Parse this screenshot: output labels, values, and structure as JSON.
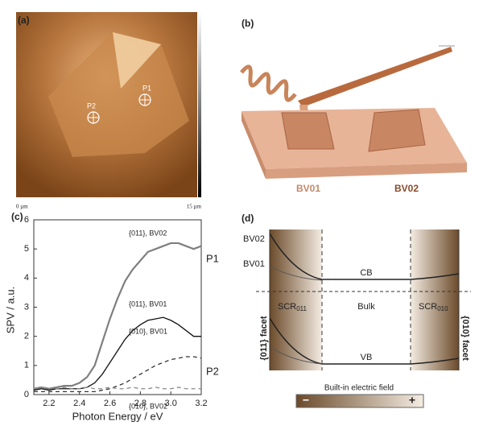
{
  "panels": {
    "a": {
      "label": "(a)",
      "point1": "P1",
      "point2": "P2",
      "scale_start": "0 µm",
      "scale_end": "15 µm"
    },
    "b": {
      "label": "(b)",
      "crystal1": "BV01",
      "crystal2": "BV02"
    },
    "d": {
      "label": "(d)",
      "curve_top": "BV02",
      "curve_bottom": "BV01",
      "cb": "CB",
      "bulk": "Bulk",
      "vb": "VB",
      "scr_left": {
        "text": "SCR",
        "sub": "011"
      },
      "scr_right": {
        "text": "SCR",
        "sub": "010"
      },
      "facet_left": "{011} facet",
      "facet_right": "{010} facet",
      "field": "Built-in electric field",
      "minus": "−",
      "plus": "+"
    }
  },
  "chart_data": {
    "type": "line",
    "label": "(c)",
    "xlabel": "Photon Energy / eV",
    "ylabel": "SPV / a.u.",
    "x": [
      2.1,
      2.15,
      2.2,
      2.25,
      2.3,
      2.35,
      2.4,
      2.45,
      2.5,
      2.55,
      2.6,
      2.65,
      2.7,
      2.75,
      2.8,
      2.85,
      2.9,
      2.95,
      3.0,
      3.05,
      3.1,
      3.15,
      3.2
    ],
    "series": [
      {
        "name": "{011}, BV02",
        "color": "#7f7f7f",
        "style": "solid",
        "values": [
          0.2,
          0.25,
          0.2,
          0.25,
          0.3,
          0.3,
          0.4,
          0.6,
          1.0,
          1.8,
          2.6,
          3.3,
          3.9,
          4.3,
          4.6,
          4.9,
          5.0,
          5.1,
          5.2,
          5.2,
          5.1,
          5.0,
          5.1
        ]
      },
      {
        "name": "{011}, BV01",
        "color": "#111111",
        "style": "solid",
        "values": [
          0.15,
          0.2,
          0.15,
          0.2,
          0.2,
          0.2,
          0.2,
          0.25,
          0.4,
          0.7,
          1.1,
          1.5,
          1.9,
          2.2,
          2.4,
          2.55,
          2.6,
          2.65,
          2.55,
          2.4,
          2.2,
          2.0,
          2.0
        ]
      },
      {
        "name": "{010}, BV01",
        "color": "#333333",
        "style": "dashed",
        "values": [
          0.1,
          0.1,
          0.1,
          0.1,
          0.1,
          0.1,
          0.1,
          0.1,
          0.1,
          0.15,
          0.2,
          0.3,
          0.4,
          0.55,
          0.7,
          0.85,
          1.0,
          1.1,
          1.2,
          1.25,
          1.3,
          1.3,
          1.25
        ]
      },
      {
        "name": "{010}, BV02",
        "color": "#8a8a8a",
        "style": "dashed",
        "values": [
          0.2,
          0.25,
          0.2,
          0.2,
          0.25,
          0.2,
          0.2,
          0.25,
          0.2,
          0.2,
          0.25,
          0.2,
          0.2,
          0.25,
          0.2,
          0.2,
          0.25,
          0.2,
          0.2,
          0.25,
          0.2,
          0.2,
          0.2
        ]
      }
    ],
    "annotations": [
      "P1",
      "P2"
    ],
    "xlim": [
      2.1,
      3.2
    ],
    "xticks": [
      {
        "value": 2.2,
        "label": "2.2"
      },
      {
        "value": 2.4,
        "label": "2.4"
      },
      {
        "value": 2.6,
        "label": "2.6"
      },
      {
        "value": 2.8,
        "label": "2.8"
      },
      {
        "value": 3.0,
        "label": "3.0"
      },
      {
        "value": 3.2,
        "label": "3.2"
      }
    ],
    "ylim": [
      0,
      6
    ],
    "yticks": [
      0,
      1,
      2,
      3,
      4,
      5,
      6
    ],
    "grid": false
  }
}
